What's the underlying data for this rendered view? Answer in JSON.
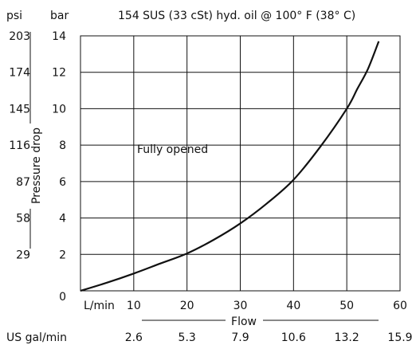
{
  "chart_data": {
    "type": "line",
    "title": "154 SUS (33 cSt) hyd. oil @ 100° F (38° C)",
    "y_unit_psi": "psi",
    "y_unit_bar": "bar",
    "ylabel": "Pressure drop",
    "xlabel": "Flow",
    "x_unit_lpm": "L/min",
    "x_unit_gpm": "US gal/min",
    "annotation": "Fully opened",
    "bar_ticks": [
      "0",
      "2",
      "4",
      "6",
      "8",
      "10",
      "12",
      "14"
    ],
    "psi_ticks": [
      "29",
      "58",
      "87",
      "116",
      "145",
      "174",
      "203"
    ],
    "lpm_ticks": [
      "10",
      "20",
      "30",
      "40",
      "50",
      "60"
    ],
    "gpm_ticks": [
      "2.6",
      "5.3",
      "7.9",
      "10.6",
      "13.2",
      "15.9"
    ],
    "xlim": [
      0,
      60
    ],
    "ylim": [
      0,
      14
    ],
    "grid": true,
    "series": [
      {
        "x": [
          0,
          5,
          10,
          15,
          20,
          25,
          30,
          35,
          40,
          45,
          50,
          52,
          54,
          56
        ],
        "y": [
          0.0,
          0.45,
          0.95,
          1.5,
          2.05,
          2.8,
          3.7,
          4.8,
          6.1,
          7.9,
          10.0,
          11.1,
          12.2,
          13.7
        ]
      }
    ]
  }
}
